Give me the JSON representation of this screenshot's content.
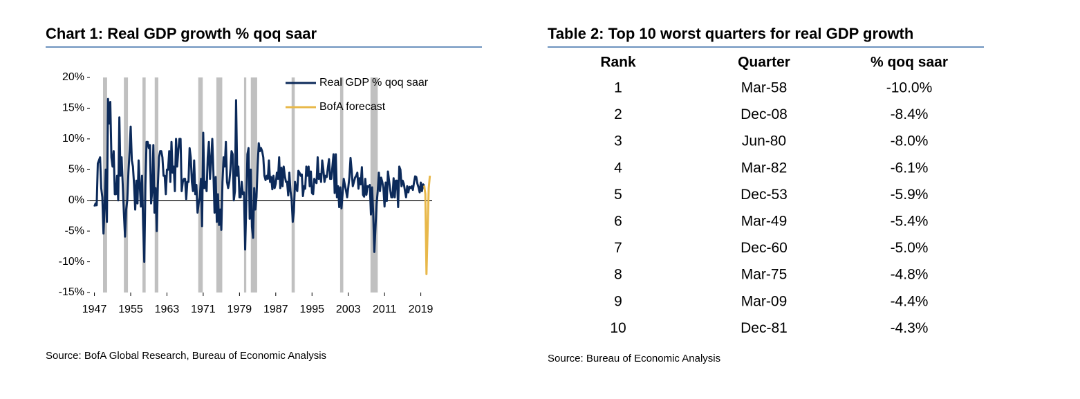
{
  "chart_data": {
    "type": "line",
    "title": "Chart 1: Real GDP growth % qoq saar",
    "source": "Source: BofA Global Research, Bureau of Economic Analysis",
    "xlim": [
      1946,
      2021.5
    ],
    "xticks": [
      1947,
      1955,
      1963,
      1971,
      1979,
      1987,
      1995,
      2003,
      2011,
      2019
    ],
    "ylim": [
      -15,
      20
    ],
    "yticks": [
      {
        "value": 20,
        "label": "20%"
      },
      {
        "value": 15,
        "label": "15%"
      },
      {
        "value": 10,
        "label": "10%"
      },
      {
        "value": 5,
        "label": "5%"
      },
      {
        "value": 0,
        "label": "0%"
      },
      {
        "value": -5,
        "label": "-5%"
      },
      {
        "value": -10,
        "label": "-10%"
      },
      {
        "value": -15,
        "label": "-15%"
      }
    ],
    "legend": "upper right",
    "recession_color": "#c0c0c0",
    "recessions": [
      [
        1948.9,
        1949.8
      ],
      [
        1953.5,
        1954.4
      ],
      [
        1957.6,
        1958.3
      ],
      [
        1960.3,
        1961.1
      ],
      [
        1969.9,
        1970.9
      ],
      [
        1973.9,
        1975.2
      ],
      [
        1980.0,
        1980.5
      ],
      [
        1981.5,
        1982.9
      ],
      [
        1990.5,
        1991.2
      ],
      [
        2001.2,
        2001.9
      ],
      [
        2007.9,
        2009.5
      ]
    ],
    "series": [
      {
        "name": "Real GDP % qoq saar",
        "color": "#0c2a5a",
        "x": [
          1947,
          1947.25,
          1947.5,
          1947.75,
          1948,
          1948.25,
          1948.5,
          1948.75,
          1949,
          1949.25,
          1949.5,
          1949.75,
          1950,
          1950.25,
          1950.5,
          1950.75,
          1951,
          1951.25,
          1951.5,
          1951.75,
          1952,
          1952.25,
          1952.5,
          1952.75,
          1953,
          1953.25,
          1953.5,
          1953.75,
          1954,
          1954.25,
          1954.5,
          1954.75,
          1955,
          1955.25,
          1955.5,
          1955.75,
          1956,
          1956.25,
          1956.5,
          1956.75,
          1957,
          1957.25,
          1957.5,
          1957.75,
          1958,
          1958.25,
          1958.5,
          1958.75,
          1959,
          1959.25,
          1959.5,
          1959.75,
          1960,
          1960.25,
          1960.5,
          1960.75,
          1961,
          1961.25,
          1961.5,
          1961.75,
          1962,
          1962.25,
          1962.5,
          1962.75,
          1963,
          1963.25,
          1963.5,
          1963.75,
          1964,
          1964.25,
          1964.5,
          1964.75,
          1965,
          1965.25,
          1965.5,
          1965.75,
          1966,
          1966.25,
          1966.5,
          1966.75,
          1967,
          1967.25,
          1967.5,
          1967.75,
          1968,
          1968.25,
          1968.5,
          1968.75,
          1969,
          1969.25,
          1969.5,
          1969.75,
          1970,
          1970.25,
          1970.5,
          1970.75,
          1971,
          1971.25,
          1971.5,
          1971.75,
          1972,
          1972.25,
          1972.5,
          1972.75,
          1973,
          1973.25,
          1973.5,
          1973.75,
          1974,
          1974.25,
          1974.5,
          1974.75,
          1975,
          1975.25,
          1975.5,
          1975.75,
          1976,
          1976.25,
          1976.5,
          1976.75,
          1977,
          1977.25,
          1977.5,
          1977.75,
          1978,
          1978.25,
          1978.5,
          1978.75,
          1979,
          1979.25,
          1979.5,
          1979.75,
          1980,
          1980.25,
          1980.5,
          1980.75,
          1981,
          1981.25,
          1981.5,
          1981.75,
          1982,
          1982.25,
          1982.5,
          1982.75,
          1983,
          1983.25,
          1983.5,
          1983.75,
          1984,
          1984.25,
          1984.5,
          1984.75,
          1985,
          1985.25,
          1985.5,
          1985.75,
          1986,
          1986.25,
          1986.5,
          1986.75,
          1987,
          1987.25,
          1987.5,
          1987.75,
          1988,
          1988.25,
          1988.5,
          1988.75,
          1989,
          1989.25,
          1989.5,
          1989.75,
          1990,
          1990.25,
          1990.5,
          1990.75,
          1991,
          1991.25,
          1991.5,
          1991.75,
          1992,
          1992.25,
          1992.5,
          1992.75,
          1993,
          1993.25,
          1993.5,
          1993.75,
          1994,
          1994.25,
          1994.5,
          1994.75,
          1995,
          1995.25,
          1995.5,
          1995.75,
          1996,
          1996.25,
          1996.5,
          1996.75,
          1997,
          1997.25,
          1997.5,
          1997.75,
          1998,
          1998.25,
          1998.5,
          1998.75,
          1999,
          1999.25,
          1999.5,
          1999.75,
          2000,
          2000.25,
          2000.5,
          2000.75,
          2001,
          2001.25,
          2001.5,
          2001.75,
          2002,
          2002.25,
          2002.5,
          2002.75,
          2003,
          2003.25,
          2003.5,
          2003.75,
          2004,
          2004.25,
          2004.5,
          2004.75,
          2005,
          2005.25,
          2005.5,
          2005.75,
          2006,
          2006.25,
          2006.5,
          2006.75,
          2007,
          2007.25,
          2007.5,
          2007.75,
          2008,
          2008.25,
          2008.5,
          2008.75,
          2009,
          2009.25,
          2009.5,
          2009.75,
          2010,
          2010.25,
          2010.5,
          2010.75,
          2011,
          2011.25,
          2011.5,
          2011.75,
          2012,
          2012.25,
          2012.5,
          2012.75,
          2013,
          2013.25,
          2013.5,
          2013.75,
          2014,
          2014.25,
          2014.5,
          2014.75,
          2015,
          2015.25,
          2015.5,
          2015.75,
          2016,
          2016.25,
          2016.5,
          2016.75,
          2017,
          2017.25,
          2017.5,
          2017.75,
          2018,
          2018.25,
          2018.5,
          2018.75,
          2019,
          2019.25,
          2019.5,
          2019.75
        ],
        "values": [
          -1,
          -0.5,
          -0.8,
          6,
          6.5,
          7,
          2,
          0.5,
          -5.4,
          -1,
          5,
          -3.5,
          16.5,
          12.5,
          16,
          7,
          5.5,
          8,
          1,
          1,
          4,
          0,
          13.5,
          4,
          7,
          2.5,
          -2,
          -5.9,
          -1.5,
          0,
          4.5,
          8,
          12,
          6.5,
          5.5,
          2.5,
          -1.5,
          3.2,
          -0.5,
          6.5,
          2.5,
          -1,
          4,
          -4,
          -10,
          2.5,
          9.5,
          9.5,
          8.5,
          9,
          -0.5,
          1.5,
          9,
          -2,
          2,
          -5,
          2.5,
          7,
          8,
          8,
          7,
          4,
          4,
          1,
          5,
          5,
          8,
          3,
          9.5,
          4.5,
          5.5,
          1.5,
          10,
          5.5,
          8,
          10,
          10,
          1.5,
          3,
          3.5,
          3.5,
          0.2,
          3,
          3,
          8.5,
          7,
          3,
          1.5,
          6.5,
          1,
          2.5,
          -2,
          -0.5,
          0.5,
          3.5,
          -4.2,
          11,
          2,
          3,
          1.5,
          7,
          9.5,
          3.5,
          6.5,
          10,
          4.5,
          -2,
          3.8,
          -3.5,
          1,
          -4,
          -1.5,
          -4.8,
          3,
          7,
          5.5,
          9.5,
          3,
          2,
          3,
          5,
          8,
          7.5,
          0,
          1.5,
          16.3,
          4,
          5.5,
          0.5,
          0.5,
          3,
          1,
          1.3,
          -8,
          -0.5,
          7.5,
          8.5,
          -3,
          5,
          -4.3,
          -6.1,
          2,
          -1.5,
          0.5,
          5.5,
          9.3,
          8,
          8.5,
          8,
          7,
          4,
          3.3,
          4,
          3.5,
          6.5,
          3,
          3.8,
          1.8,
          4,
          2,
          2.7,
          4.5,
          3.5,
          7,
          2,
          5.3,
          2.3,
          5.5,
          4,
          3,
          3,
          0.8,
          4.5,
          1.5,
          0.2,
          -3.5,
          -1.9,
          3,
          2,
          1.5,
          4.8,
          4.5,
          4,
          4.2,
          0.7,
          2.3,
          1.9,
          5.5,
          4,
          5.5,
          2.3,
          4.7,
          1.2,
          1,
          3.5,
          3,
          2.8,
          7,
          3.5,
          4.3,
          3,
          6.5,
          5,
          3,
          4,
          3.8,
          5.3,
          6.7,
          3.5,
          3.5,
          5.5,
          7.5,
          1.2,
          7.5,
          0.5,
          2.3,
          -1.1,
          2.1,
          -1.3,
          1.1,
          3.5,
          2.5,
          1.6,
          0.5,
          2.1,
          3.8,
          6.9,
          4.8,
          2.3,
          3,
          3.7,
          4,
          4.5,
          1.9,
          3.6,
          2.6,
          5.4,
          0.9,
          0.6,
          3.5,
          0.9,
          2.3,
          2.2,
          2.5,
          -2.3,
          2.1,
          -2.1,
          -8.4,
          -4.4,
          -0.6,
          1.5,
          4.5,
          1.5,
          3.7,
          3,
          2,
          -1,
          2.9,
          -0.1,
          4.7,
          3.2,
          1.7,
          0.5,
          0.5,
          3.6,
          0.5,
          3.2,
          3.2,
          -1.1,
          5.5,
          5,
          2.3,
          3.2,
          2.7,
          1.6,
          0.5,
          2.3,
          1.3,
          2.2,
          2,
          2.3,
          1.7,
          2.9,
          3.9,
          3.8,
          2.7,
          2.1,
          1.3,
          2.9,
          1.5,
          2.6,
          2.4
        ]
      },
      {
        "name": "BofA forecast",
        "color": "#e8b84a",
        "x": [
          2019.75,
          2020,
          2020.25,
          2020.75,
          2021
        ],
        "values": [
          2.4,
          1,
          -12,
          2,
          4
        ]
      }
    ]
  },
  "table": {
    "title": "Table 2: Top 10 worst quarters for real GDP growth",
    "columns": [
      "Rank",
      "Quarter",
      "% qoq saar"
    ],
    "rows": [
      [
        1,
        "Mar-58",
        "-10.0%"
      ],
      [
        2,
        "Dec-08",
        "-8.4%"
      ],
      [
        3,
        "Jun-80",
        "-8.0%"
      ],
      [
        4,
        "Mar-82",
        "-6.1%"
      ],
      [
        5,
        "Dec-53",
        "-5.9%"
      ],
      [
        6,
        "Mar-49",
        "-5.4%"
      ],
      [
        7,
        "Dec-60",
        "-5.0%"
      ],
      [
        8,
        "Mar-75",
        "-4.8%"
      ],
      [
        9,
        "Mar-09",
        "-4.4%"
      ],
      [
        10,
        "Dec-81",
        "-4.3%"
      ]
    ],
    "source": "Source: Bureau of Economic Analysis"
  }
}
